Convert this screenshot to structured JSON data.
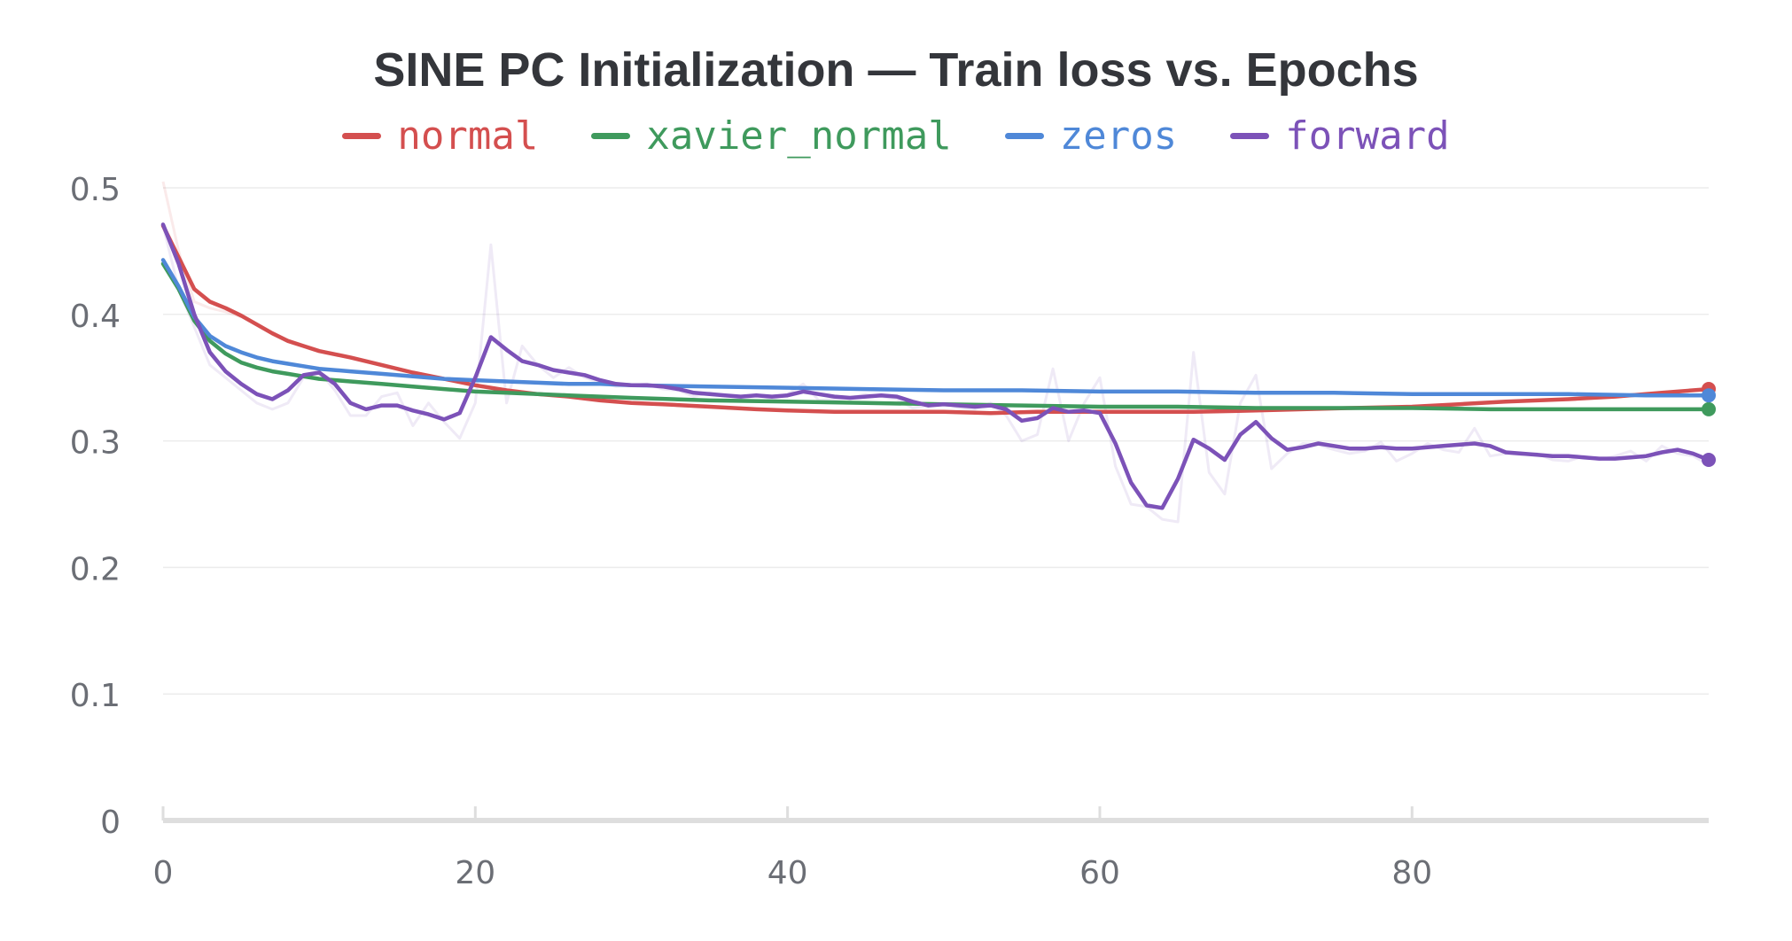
{
  "chart_data": {
    "type": "line",
    "title": "SINE PC Initialization — Train loss vs. Epochs",
    "xlabel": "",
    "ylabel": "",
    "xlim": [
      0,
      99
    ],
    "ylim": [
      0,
      0.5
    ],
    "x_ticks": [
      0,
      20,
      40,
      60,
      80
    ],
    "y_ticks": [
      0,
      0.1,
      0.2,
      0.3,
      0.4,
      0.5
    ],
    "grid": true,
    "legend_position": "top-center",
    "series": [
      {
        "name": "normal",
        "color": "#d44f4f",
        "points": [
          [
            0,
            0.47
          ],
          [
            1,
            0.445
          ],
          [
            2,
            0.42
          ],
          [
            3,
            0.41
          ],
          [
            4,
            0.405
          ],
          [
            5,
            0.399
          ],
          [
            6,
            0.392
          ],
          [
            7,
            0.385
          ],
          [
            8,
            0.379
          ],
          [
            9,
            0.375
          ],
          [
            10,
            0.371
          ],
          [
            12,
            0.366
          ],
          [
            14,
            0.36
          ],
          [
            16,
            0.354
          ],
          [
            18,
            0.349
          ],
          [
            20,
            0.344
          ],
          [
            22,
            0.34
          ],
          [
            24,
            0.337
          ],
          [
            26,
            0.335
          ],
          [
            28,
            0.332
          ],
          [
            30,
            0.33
          ],
          [
            32,
            0.329
          ],
          [
            35,
            0.327
          ],
          [
            38,
            0.325
          ],
          [
            40,
            0.324
          ],
          [
            43,
            0.323
          ],
          [
            46,
            0.323
          ],
          [
            50,
            0.323
          ],
          [
            53,
            0.322
          ],
          [
            56,
            0.323
          ],
          [
            60,
            0.323
          ],
          [
            63,
            0.323
          ],
          [
            66,
            0.323
          ],
          [
            70,
            0.324
          ],
          [
            73,
            0.325
          ],
          [
            76,
            0.326
          ],
          [
            80,
            0.327
          ],
          [
            83,
            0.329
          ],
          [
            86,
            0.331
          ],
          [
            90,
            0.333
          ],
          [
            93,
            0.335
          ],
          [
            96,
            0.338
          ],
          [
            99,
            0.341
          ]
        ]
      },
      {
        "name": "xavier_normal",
        "color": "#3f9a5d",
        "points": [
          [
            0,
            0.44
          ],
          [
            1,
            0.42
          ],
          [
            2,
            0.395
          ],
          [
            3,
            0.379
          ],
          [
            4,
            0.369
          ],
          [
            5,
            0.362
          ],
          [
            6,
            0.358
          ],
          [
            7,
            0.355
          ],
          [
            8,
            0.353
          ],
          [
            9,
            0.351
          ],
          [
            10,
            0.349
          ],
          [
            12,
            0.347
          ],
          [
            14,
            0.345
          ],
          [
            16,
            0.343
          ],
          [
            18,
            0.341
          ],
          [
            20,
            0.339
          ],
          [
            22,
            0.338
          ],
          [
            24,
            0.337
          ],
          [
            26,
            0.336
          ],
          [
            28,
            0.335
          ],
          [
            30,
            0.334
          ],
          [
            35,
            0.332
          ],
          [
            40,
            0.331
          ],
          [
            45,
            0.33
          ],
          [
            50,
            0.329
          ],
          [
            55,
            0.328
          ],
          [
            60,
            0.327
          ],
          [
            65,
            0.327
          ],
          [
            70,
            0.326
          ],
          [
            75,
            0.326
          ],
          [
            80,
            0.326
          ],
          [
            85,
            0.325
          ],
          [
            90,
            0.325
          ],
          [
            95,
            0.325
          ],
          [
            99,
            0.325
          ]
        ]
      },
      {
        "name": "zeros",
        "color": "#4f88d8",
        "points": [
          [
            0,
            0.443
          ],
          [
            1,
            0.422
          ],
          [
            2,
            0.398
          ],
          [
            3,
            0.383
          ],
          [
            4,
            0.375
          ],
          [
            5,
            0.37
          ],
          [
            6,
            0.366
          ],
          [
            7,
            0.363
          ],
          [
            8,
            0.361
          ],
          [
            9,
            0.359
          ],
          [
            10,
            0.357
          ],
          [
            12,
            0.355
          ],
          [
            14,
            0.353
          ],
          [
            16,
            0.351
          ],
          [
            18,
            0.349
          ],
          [
            20,
            0.348
          ],
          [
            22,
            0.347
          ],
          [
            24,
            0.346
          ],
          [
            26,
            0.345
          ],
          [
            28,
            0.345
          ],
          [
            30,
            0.344
          ],
          [
            35,
            0.343
          ],
          [
            40,
            0.342
          ],
          [
            45,
            0.341
          ],
          [
            50,
            0.34
          ],
          [
            55,
            0.34
          ],
          [
            60,
            0.339
          ],
          [
            65,
            0.339
          ],
          [
            70,
            0.338
          ],
          [
            75,
            0.338
          ],
          [
            80,
            0.337
          ],
          [
            85,
            0.337
          ],
          [
            90,
            0.337
          ],
          [
            95,
            0.336
          ],
          [
            99,
            0.336
          ]
        ]
      },
      {
        "name": "forward",
        "color": "#7c52b8",
        "points": [
          [
            0,
            0.471
          ],
          [
            1,
            0.44
          ],
          [
            2,
            0.4
          ],
          [
            3,
            0.37
          ],
          [
            4,
            0.355
          ],
          [
            5,
            0.345
          ],
          [
            6,
            0.337
          ],
          [
            7,
            0.333
          ],
          [
            8,
            0.34
          ],
          [
            9,
            0.352
          ],
          [
            10,
            0.354
          ],
          [
            11,
            0.345
          ],
          [
            12,
            0.33
          ],
          [
            13,
            0.325
          ],
          [
            14,
            0.328
          ],
          [
            15,
            0.328
          ],
          [
            16,
            0.324
          ],
          [
            17,
            0.321
          ],
          [
            18,
            0.317
          ],
          [
            19,
            0.322
          ],
          [
            20,
            0.35
          ],
          [
            21,
            0.382
          ],
          [
            22,
            0.372
          ],
          [
            23,
            0.363
          ],
          [
            24,
            0.36
          ],
          [
            25,
            0.356
          ],
          [
            26,
            0.354
          ],
          [
            27,
            0.352
          ],
          [
            28,
            0.348
          ],
          [
            29,
            0.345
          ],
          [
            30,
            0.344
          ],
          [
            31,
            0.344
          ],
          [
            32,
            0.343
          ],
          [
            33,
            0.341
          ],
          [
            34,
            0.338
          ],
          [
            35,
            0.337
          ],
          [
            36,
            0.336
          ],
          [
            37,
            0.335
          ],
          [
            38,
            0.336
          ],
          [
            39,
            0.335
          ],
          [
            40,
            0.336
          ],
          [
            41,
            0.339
          ],
          [
            42,
            0.337
          ],
          [
            43,
            0.335
          ],
          [
            44,
            0.334
          ],
          [
            45,
            0.335
          ],
          [
            46,
            0.336
          ],
          [
            47,
            0.335
          ],
          [
            48,
            0.331
          ],
          [
            49,
            0.328
          ],
          [
            50,
            0.329
          ],
          [
            51,
            0.328
          ],
          [
            52,
            0.327
          ],
          [
            53,
            0.328
          ],
          [
            54,
            0.325
          ],
          [
            55,
            0.316
          ],
          [
            56,
            0.318
          ],
          [
            57,
            0.326
          ],
          [
            58,
            0.323
          ],
          [
            59,
            0.324
          ],
          [
            60,
            0.322
          ],
          [
            61,
            0.298
          ],
          [
            62,
            0.267
          ],
          [
            63,
            0.249
          ],
          [
            64,
            0.247
          ],
          [
            65,
            0.27
          ],
          [
            66,
            0.301
          ],
          [
            67,
            0.294
          ],
          [
            68,
            0.285
          ],
          [
            69,
            0.305
          ],
          [
            70,
            0.315
          ],
          [
            71,
            0.302
          ],
          [
            72,
            0.293
          ],
          [
            73,
            0.295
          ],
          [
            74,
            0.298
          ],
          [
            75,
            0.296
          ],
          [
            76,
            0.294
          ],
          [
            77,
            0.294
          ],
          [
            78,
            0.295
          ],
          [
            79,
            0.294
          ],
          [
            80,
            0.294
          ],
          [
            81,
            0.295
          ],
          [
            82,
            0.296
          ],
          [
            83,
            0.297
          ],
          [
            84,
            0.298
          ],
          [
            85,
            0.296
          ],
          [
            86,
            0.291
          ],
          [
            87,
            0.29
          ],
          [
            88,
            0.289
          ],
          [
            89,
            0.288
          ],
          [
            90,
            0.288
          ],
          [
            91,
            0.287
          ],
          [
            92,
            0.286
          ],
          [
            93,
            0.286
          ],
          [
            94,
            0.287
          ],
          [
            95,
            0.288
          ],
          [
            96,
            0.291
          ],
          [
            97,
            0.293
          ],
          [
            98,
            0.29
          ],
          [
            99,
            0.285
          ]
        ]
      }
    ],
    "raw_series": [
      {
        "name": "forward",
        "color": "#7c52b8",
        "points": [
          [
            0,
            0.47
          ],
          [
            1,
            0.42
          ],
          [
            2,
            0.39
          ],
          [
            3,
            0.36
          ],
          [
            4,
            0.35
          ],
          [
            5,
            0.34
          ],
          [
            6,
            0.33
          ],
          [
            7,
            0.325
          ],
          [
            8,
            0.33
          ],
          [
            9,
            0.35
          ],
          [
            10,
            0.355
          ],
          [
            11,
            0.34
          ],
          [
            12,
            0.32
          ],
          [
            13,
            0.32
          ],
          [
            14,
            0.335
          ],
          [
            15,
            0.338
          ],
          [
            16,
            0.312
          ],
          [
            17,
            0.33
          ],
          [
            18,
            0.315
          ],
          [
            19,
            0.302
          ],
          [
            20,
            0.33
          ],
          [
            21,
            0.455
          ],
          [
            22,
            0.33
          ],
          [
            23,
            0.375
          ],
          [
            24,
            0.36
          ],
          [
            25,
            0.35
          ],
          [
            26,
            0.358
          ],
          [
            27,
            0.35
          ],
          [
            28,
            0.346
          ],
          [
            29,
            0.343
          ],
          [
            30,
            0.344
          ],
          [
            31,
            0.345
          ],
          [
            32,
            0.341
          ],
          [
            33,
            0.34
          ],
          [
            34,
            0.335
          ],
          [
            35,
            0.338
          ],
          [
            36,
            0.336
          ],
          [
            37,
            0.334
          ],
          [
            38,
            0.337
          ],
          [
            39,
            0.333
          ],
          [
            40,
            0.337
          ],
          [
            41,
            0.345
          ],
          [
            42,
            0.332
          ],
          [
            43,
            0.333
          ],
          [
            44,
            0.334
          ],
          [
            45,
            0.337
          ],
          [
            46,
            0.335
          ],
          [
            47,
            0.333
          ],
          [
            48,
            0.326
          ],
          [
            49,
            0.328
          ],
          [
            50,
            0.33
          ],
          [
            51,
            0.326
          ],
          [
            52,
            0.325
          ],
          [
            53,
            0.33
          ],
          [
            54,
            0.32
          ],
          [
            55,
            0.3
          ],
          [
            56,
            0.305
          ],
          [
            57,
            0.357
          ],
          [
            58,
            0.3
          ],
          [
            59,
            0.33
          ],
          [
            60,
            0.35
          ],
          [
            61,
            0.28
          ],
          [
            62,
            0.25
          ],
          [
            63,
            0.248
          ],
          [
            64,
            0.238
          ],
          [
            65,
            0.236
          ],
          [
            66,
            0.37
          ],
          [
            67,
            0.275
          ],
          [
            68,
            0.258
          ],
          [
            69,
            0.33
          ],
          [
            70,
            0.352
          ],
          [
            71,
            0.278
          ],
          [
            72,
            0.29
          ],
          [
            73,
            0.298
          ],
          [
            74,
            0.297
          ],
          [
            75,
            0.293
          ],
          [
            76,
            0.29
          ],
          [
            77,
            0.292
          ],
          [
            78,
            0.299
          ],
          [
            79,
            0.284
          ],
          [
            80,
            0.29
          ],
          [
            81,
            0.298
          ],
          [
            82,
            0.293
          ],
          [
            83,
            0.291
          ],
          [
            84,
            0.31
          ],
          [
            85,
            0.288
          ],
          [
            86,
            0.29
          ],
          [
            87,
            0.289
          ],
          [
            88,
            0.29
          ],
          [
            89,
            0.285
          ],
          [
            90,
            0.284
          ],
          [
            91,
            0.288
          ],
          [
            92,
            0.285
          ],
          [
            93,
            0.288
          ],
          [
            94,
            0.292
          ],
          [
            95,
            0.284
          ],
          [
            96,
            0.296
          ],
          [
            97,
            0.29
          ],
          [
            98,
            0.288
          ],
          [
            99,
            0.281
          ]
        ]
      },
      {
        "name": "normal",
        "color": "#d44f4f",
        "points": [
          [
            0,
            0.505
          ],
          [
            1,
            0.45
          ],
          [
            2,
            0.41
          ],
          [
            3,
            0.405
          ],
          [
            4,
            0.402
          ],
          [
            5,
            0.398
          ]
        ]
      }
    ],
    "axis_color": "#dedede",
    "grid_color": "#ececec",
    "tick_label_color": "#6b6e75"
  }
}
